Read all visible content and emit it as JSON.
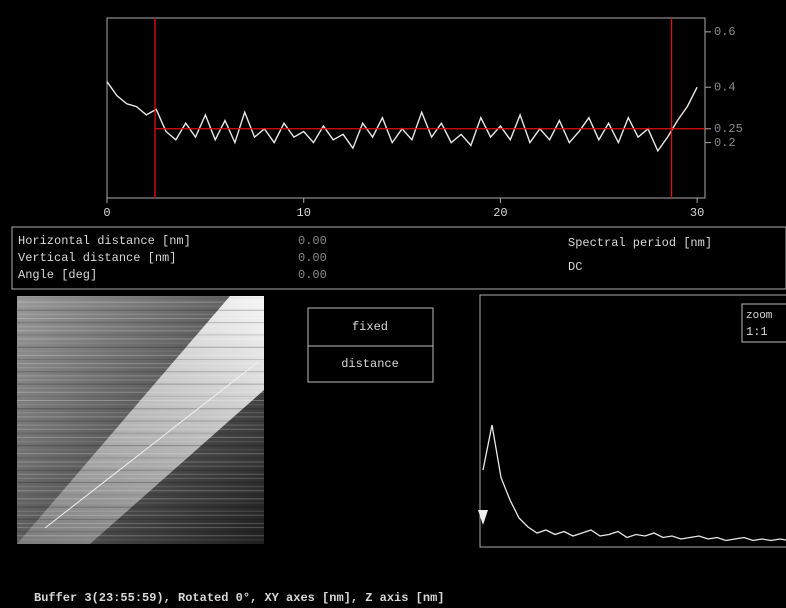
{
  "profile": {
    "x": [
      0,
      0.5,
      1,
      1.5,
      2,
      2.5,
      3,
      3.5,
      4,
      4.5,
      5,
      5.5,
      6,
      6.5,
      7,
      7.5,
      8,
      8.5,
      9,
      9.5,
      10,
      10.5,
      11,
      11.5,
      12,
      12.5,
      13,
      13.5,
      14,
      14.5,
      15,
      15.5,
      16,
      16.5,
      17,
      17.5,
      18,
      18.5,
      19,
      19.5,
      20,
      20.5,
      21,
      21.5,
      22,
      22.5,
      23,
      23.5,
      24,
      24.5,
      25,
      25.5,
      26,
      26.5,
      27,
      27.5,
      28,
      28.5,
      29,
      29.5,
      30
    ],
    "values": [
      0.42,
      0.37,
      0.34,
      0.33,
      0.3,
      0.32,
      0.24,
      0.21,
      0.27,
      0.22,
      0.3,
      0.21,
      0.28,
      0.2,
      0.31,
      0.22,
      0.25,
      0.2,
      0.27,
      0.22,
      0.24,
      0.2,
      0.26,
      0.21,
      0.23,
      0.18,
      0.27,
      0.22,
      0.29,
      0.2,
      0.25,
      0.21,
      0.31,
      0.22,
      0.27,
      0.2,
      0.23,
      0.19,
      0.29,
      0.22,
      0.26,
      0.21,
      0.3,
      0.2,
      0.25,
      0.21,
      0.28,
      0.2,
      0.24,
      0.29,
      0.21,
      0.27,
      0.2,
      0.29,
      0.22,
      0.25,
      0.17,
      0.22,
      0.28,
      0.33,
      0.4
    ],
    "xlim": [
      0,
      30.4
    ],
    "ylim": [
      0,
      0.65
    ],
    "xticks": [
      0,
      10,
      20,
      30
    ],
    "yticks": [
      0.6,
      0.4,
      0.25,
      0.2
    ],
    "cursors": [
      2.44,
      28.7
    ],
    "level": 0.25,
    "line_color": "#e8e8e8",
    "cursor_color": "#e01010"
  },
  "readout": {
    "rows": [
      {
        "label": "Horizontal distance [nm]",
        "value": "0.00"
      },
      {
        "label": "Vertical distance [nm]",
        "value": "0.00"
      },
      {
        "label": "Angle [deg]",
        "value": "0.00"
      }
    ],
    "spectral_label": "Spectral period [nm]",
    "spectral_value": "DC"
  },
  "buttons": [
    "fixed",
    "distance"
  ],
  "spectrum": {
    "zoom_label": "zoom",
    "zoom_value": "1:1",
    "values": [
      0.5,
      0.8,
      0.45,
      0.3,
      0.18,
      0.12,
      0.08,
      0.1,
      0.07,
      0.09,
      0.06,
      0.08,
      0.1,
      0.06,
      0.07,
      0.09,
      0.05,
      0.07,
      0.06,
      0.08,
      0.05,
      0.06,
      0.04,
      0.05,
      0.06,
      0.04,
      0.05,
      0.03,
      0.04,
      0.05,
      0.03,
      0.04,
      0.03,
      0.04,
      0.03,
      0.02
    ]
  },
  "status": "Buffer 3(23:55:59), Rotated 0°, XY axes [nm], Z axis [nm]"
}
